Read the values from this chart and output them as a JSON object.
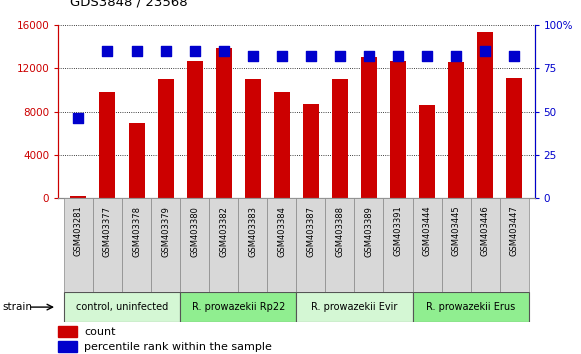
{
  "title": "GDS3848 / 23568",
  "samples": [
    "GSM403281",
    "GSM403377",
    "GSM403378",
    "GSM403379",
    "GSM403380",
    "GSM403382",
    "GSM403383",
    "GSM403384",
    "GSM403387",
    "GSM403388",
    "GSM403389",
    "GSM403391",
    "GSM403444",
    "GSM403445",
    "GSM403446",
    "GSM403447"
  ],
  "counts": [
    200,
    9800,
    6900,
    11000,
    12700,
    13900,
    11000,
    9800,
    8700,
    11000,
    13000,
    12700,
    8600,
    12600,
    15300,
    11100
  ],
  "percentiles": [
    46,
    85,
    85,
    85,
    85,
    85,
    82,
    82,
    82,
    82,
    82,
    82,
    82,
    82,
    85,
    82
  ],
  "groups": [
    {
      "label": "control, uninfected",
      "start": 0,
      "end": 4,
      "color": "#d4f7d4"
    },
    {
      "label": "R. prowazekii Rp22",
      "start": 4,
      "end": 8,
      "color": "#90ee90"
    },
    {
      "label": "R. prowazekii Evir",
      "start": 8,
      "end": 12,
      "color": "#d4f7d4"
    },
    {
      "label": "R. prowazekii Erus",
      "start": 12,
      "end": 16,
      "color": "#90ee90"
    }
  ],
  "bar_color": "#cc0000",
  "dot_color": "#0000cc",
  "left_axis_color": "#cc0000",
  "right_axis_color": "#0000cc",
  "ylim_left": [
    0,
    16000
  ],
  "ylim_right": [
    0,
    100
  ],
  "left_ticks": [
    0,
    4000,
    8000,
    12000,
    16000
  ],
  "right_ticks": [
    0,
    25,
    50,
    75,
    100
  ],
  "right_tick_labels": [
    "0",
    "25",
    "50",
    "75",
    "100%"
  ],
  "bar_width": 0.55,
  "dot_size": 45,
  "fig_width": 5.81,
  "fig_height": 3.54,
  "dpi": 100,
  "sample_box_color": "#d8d8d8",
  "sample_box_edge": "#888888"
}
